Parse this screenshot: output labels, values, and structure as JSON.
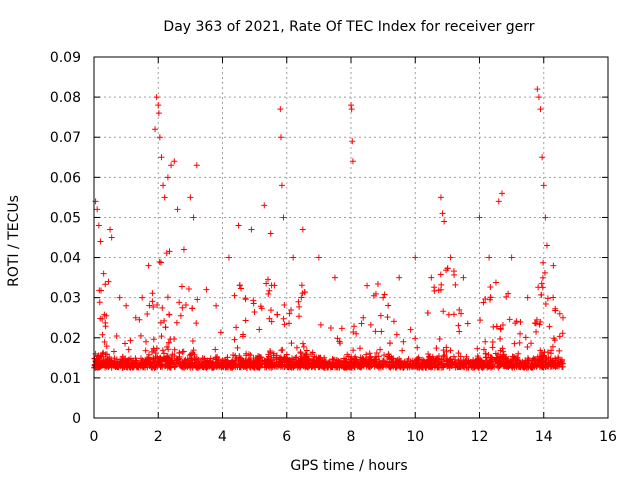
{
  "chart_data": {
    "type": "scatter",
    "title": "Day 363 of 2021, Rate Of TEC Index for receiver gerr",
    "xlabel": "GPS time / hours",
    "ylabel": "ROTI / TECUs",
    "xlim": [
      0,
      16
    ],
    "ylim": [
      0,
      0.09
    ],
    "xticks": [
      0,
      2,
      4,
      6,
      8,
      10,
      12,
      14,
      16
    ],
    "yticks": [
      0,
      0.01,
      0.02,
      0.03,
      0.04,
      0.05,
      0.06,
      0.07,
      0.08,
      0.09
    ],
    "xtick_labels": [
      "0",
      "2",
      "4",
      "6",
      "8",
      "10",
      "12",
      "14",
      "16"
    ],
    "ytick_labels": [
      "0",
      "0.01",
      "0.02",
      "0.03",
      "0.04",
      "0.05",
      "0.06",
      "0.07",
      "0.08",
      "0.09"
    ],
    "grid": true,
    "marker": "+",
    "marker_color": "#ff0000",
    "x_data_range": [
      0,
      14.6
    ],
    "series": [
      {
        "name": "ROTI",
        "points": [
          [
            0.05,
            0.054
          ],
          [
            0.1,
            0.052
          ],
          [
            0.15,
            0.048
          ],
          [
            0.2,
            0.044
          ],
          [
            0.3,
            0.036
          ],
          [
            0.45,
            0.034
          ],
          [
            0.5,
            0.047
          ],
          [
            0.55,
            0.045
          ],
          [
            0.8,
            0.03
          ],
          [
            1.0,
            0.028
          ],
          [
            1.3,
            0.025
          ],
          [
            1.5,
            0.03
          ],
          [
            1.7,
            0.038
          ],
          [
            1.9,
            0.072
          ],
          [
            1.95,
            0.08
          ],
          [
            2.0,
            0.078
          ],
          [
            2.02,
            0.076
          ],
          [
            2.05,
            0.07
          ],
          [
            2.1,
            0.065
          ],
          [
            2.15,
            0.058
          ],
          [
            2.2,
            0.055
          ],
          [
            2.3,
            0.06
          ],
          [
            2.4,
            0.063
          ],
          [
            2.5,
            0.064
          ],
          [
            2.6,
            0.052
          ],
          [
            2.8,
            0.042
          ],
          [
            3.0,
            0.055
          ],
          [
            3.1,
            0.05
          ],
          [
            3.2,
            0.063
          ],
          [
            3.5,
            0.032
          ],
          [
            3.8,
            0.028
          ],
          [
            4.2,
            0.04
          ],
          [
            4.5,
            0.048
          ],
          [
            4.9,
            0.047
          ],
          [
            5.3,
            0.053
          ],
          [
            5.5,
            0.046
          ],
          [
            5.8,
            0.077
          ],
          [
            5.82,
            0.07
          ],
          [
            5.85,
            0.058
          ],
          [
            5.9,
            0.05
          ],
          [
            6.2,
            0.04
          ],
          [
            6.5,
            0.047
          ],
          [
            7.0,
            0.04
          ],
          [
            7.5,
            0.035
          ],
          [
            8.0,
            0.078
          ],
          [
            8.02,
            0.077
          ],
          [
            8.04,
            0.069
          ],
          [
            8.06,
            0.064
          ],
          [
            8.5,
            0.033
          ],
          [
            9.0,
            0.03
          ],
          [
            9.5,
            0.035
          ],
          [
            10.0,
            0.04
          ],
          [
            10.5,
            0.035
          ],
          [
            10.8,
            0.055
          ],
          [
            10.85,
            0.051
          ],
          [
            10.9,
            0.049
          ],
          [
            11.1,
            0.04
          ],
          [
            11.5,
            0.035
          ],
          [
            12.0,
            0.05
          ],
          [
            12.3,
            0.04
          ],
          [
            12.6,
            0.054
          ],
          [
            12.7,
            0.056
          ],
          [
            13.0,
            0.04
          ],
          [
            13.5,
            0.03
          ],
          [
            13.8,
            0.082
          ],
          [
            13.85,
            0.08
          ],
          [
            13.9,
            0.077
          ],
          [
            13.95,
            0.065
          ],
          [
            14.0,
            0.058
          ],
          [
            14.05,
            0.05
          ],
          [
            14.1,
            0.043
          ],
          [
            14.3,
            0.038
          ],
          [
            14.5,
            0.026
          ],
          [
            14.6,
            0.025
          ]
        ]
      }
    ]
  }
}
